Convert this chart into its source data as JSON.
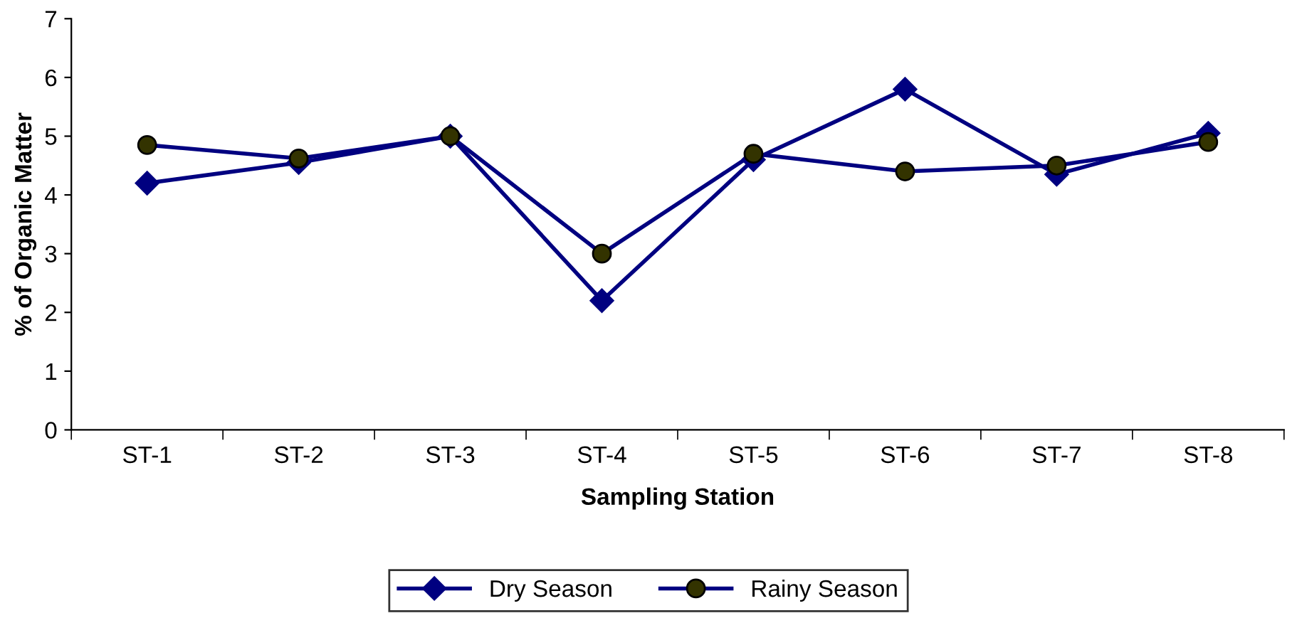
{
  "chart_data": {
    "type": "line",
    "xlabel": "Sampling Station",
    "ylabel": "% of Organic Matter",
    "categories": [
      "ST-1",
      "ST-2",
      "ST-3",
      "ST-4",
      "ST-5",
      "ST-6",
      "ST-7",
      "ST-8"
    ],
    "series": [
      {
        "name": "Dry Season",
        "color": "#000080",
        "marker": "diamond",
        "values": [
          4.2,
          4.55,
          5.0,
          2.2,
          4.6,
          5.8,
          4.35,
          5.05
        ]
      },
      {
        "name": "Rainy Season",
        "color": "#000080",
        "marker": "circle",
        "values": [
          4.85,
          4.62,
          5.0,
          3.0,
          4.7,
          4.4,
          4.5,
          4.9
        ]
      }
    ],
    "ylim": [
      0,
      7
    ],
    "yticks": [
      0,
      1,
      2,
      3,
      4,
      5,
      6,
      7
    ],
    "grid": false,
    "legend": "bottom",
    "line_style": "solid"
  }
}
